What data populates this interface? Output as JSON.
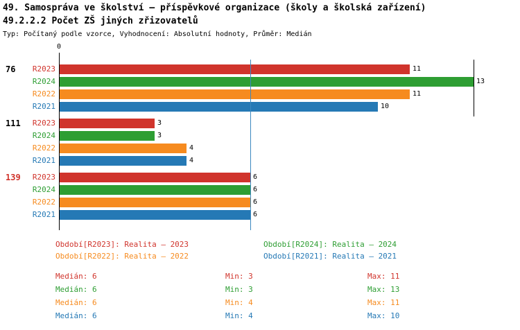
{
  "header": {
    "title": "49. Samospráva ve školství – příspěvkové organizace (školy a školská zařízení)",
    "subtitle": "49.2.2.2 Počet ZŠ jiných zřizovatelů",
    "meta": "Typ: Počítaný podle vzorce, Vyhodnocení: Absolutní hodnoty, Průměr: Medián"
  },
  "chart_data": {
    "type": "bar",
    "orientation": "horizontal",
    "axis_zero_label": "0",
    "xlim": [
      0,
      13
    ],
    "series": [
      {
        "name": "R2023",
        "color": "#d0342c"
      },
      {
        "name": "R2024",
        "color": "#2e9e33"
      },
      {
        "name": "R2022",
        "color": "#f68b1f"
      },
      {
        "name": "R2021",
        "color": "#2579b5"
      }
    ],
    "groups": [
      {
        "label": "76",
        "label_color": "#000000",
        "values": [
          11,
          13,
          11,
          10
        ]
      },
      {
        "label": "111",
        "label_color": "#000000",
        "values": [
          3,
          3,
          4,
          4
        ]
      },
      {
        "label": "139",
        "label_color": "#d0342c",
        "values": [
          6,
          6,
          6,
          6
        ]
      }
    ],
    "median_line": {
      "value": 6,
      "color": "#3a88c0"
    },
    "max_line": {
      "value": 13,
      "color": "#000000"
    }
  },
  "legend": {
    "items": [
      {
        "label": "Období[R2023]: Realita – 2023",
        "color": "#d0342c"
      },
      {
        "label": "Období[R2024]: Realita – 2024",
        "color": "#2e9e33"
      },
      {
        "label": "Období[R2022]: Realita – 2022",
        "color": "#f68b1f"
      },
      {
        "label": "Období[R2021]: Realita – 2021",
        "color": "#2579b5"
      }
    ]
  },
  "stats": {
    "rows": [
      {
        "median": "Medián: 6",
        "min": "Min: 3",
        "max": "Max: 11",
        "color": "#d0342c"
      },
      {
        "median": "Medián: 6",
        "min": "Min: 3",
        "max": "Max: 13",
        "color": "#2e9e33"
      },
      {
        "median": "Medián: 6",
        "min": "Min: 4",
        "max": "Max: 11",
        "color": "#f68b1f"
      },
      {
        "median": "Medián: 6",
        "min": "Min: 4",
        "max": "Max: 10",
        "color": "#2579b5"
      }
    ]
  }
}
